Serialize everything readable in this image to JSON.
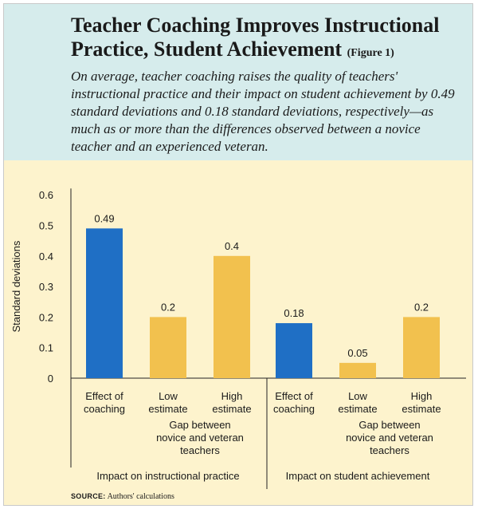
{
  "figure": {
    "title": "Teacher Coaching Improves Instructional Practice, Student Achievement",
    "figure_label": "(Figure 1)",
    "subtitle": "On average, teacher coaching raises the quality of teachers' instructional practice and their impact on student achievement by 0.49 standard deviations and 0.18 standard deviations, respectively—as much as or more than the differences observed between a novice teacher and an experienced veteran.",
    "source_label": "SOURCE:",
    "source_text": "Authors' calculations"
  },
  "colors": {
    "coaching": "#1f6fc5",
    "gap": "#f2c14e",
    "header_bg": "#d6ecec",
    "chart_bg": "#fdf3cd"
  },
  "chart_data": {
    "type": "bar",
    "title": "Teacher Coaching Improves Instructional Practice, Student Achievement",
    "ylabel": "Standard deviations",
    "ylim": [
      0,
      0.6
    ],
    "yticks": [
      "0",
      "0.1",
      "0.2",
      "0.3",
      "0.4",
      "0.5",
      "0.6"
    ],
    "gap_label": [
      "Gap between",
      "novice and veteran",
      "teachers"
    ],
    "groups": [
      {
        "name": "Impact on instructional practice",
        "bars": [
          {
            "label": [
              "Effect of",
              "coaching"
            ],
            "value": 0.49,
            "value_label": "0.49",
            "kind": "coaching"
          },
          {
            "label": [
              "Low",
              "estimate"
            ],
            "value": 0.2,
            "value_label": "0.2",
            "kind": "gap"
          },
          {
            "label": [
              "High",
              "estimate"
            ],
            "value": 0.4,
            "value_label": "0.4",
            "kind": "gap"
          }
        ]
      },
      {
        "name": "Impact on student achievement",
        "bars": [
          {
            "label": [
              "Effect of",
              "coaching"
            ],
            "value": 0.18,
            "value_label": "0.18",
            "kind": "coaching"
          },
          {
            "label": [
              "Low",
              "estimate"
            ],
            "value": 0.05,
            "value_label": "0.05",
            "kind": "gap"
          },
          {
            "label": [
              "High",
              "estimate"
            ],
            "value": 0.2,
            "value_label": "0.2",
            "kind": "gap"
          }
        ]
      }
    ]
  }
}
